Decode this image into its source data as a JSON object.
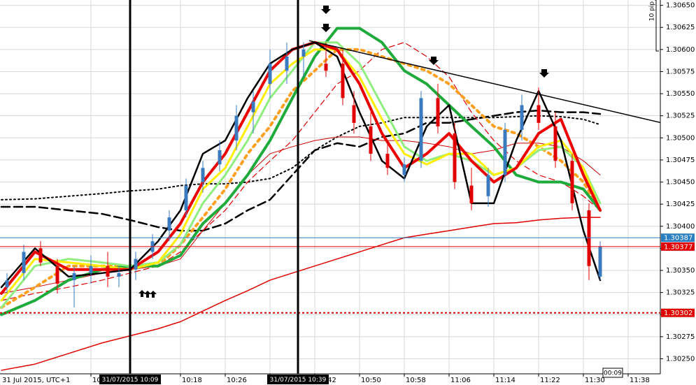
{
  "chart_data": {
    "type": "candlestick",
    "date_label": "31 Jul 2015, UTC+1",
    "scale_label": "10 pip",
    "timer": "00:09",
    "xlim": [
      "09:46",
      "11:44"
    ],
    "xticks": [
      "10:02",
      "10:18",
      "10:26",
      "10:34",
      "10:42",
      "10:50",
      "10:58",
      "11:06",
      "11:14",
      "11:22",
      "11:30",
      "11:38"
    ],
    "ylim": [
      1.30233,
      1.30656
    ],
    "yticks": [
      {
        "value": 1.3025,
        "label": "1.30250"
      },
      {
        "value": 1.30275,
        "label": "1.30275"
      },
      {
        "value": 1.303,
        "label": "1.30300"
      },
      {
        "value": 1.30325,
        "label": "1.30325"
      },
      {
        "value": 1.3035,
        "label": "1.30350"
      },
      {
        "value": 1.30375,
        "label": "1.30375"
      },
      {
        "value": 1.304,
        "label": "1.30400"
      },
      {
        "value": 1.30425,
        "label": "1.30425"
      },
      {
        "value": 1.3045,
        "label": "1.30450"
      },
      {
        "value": 1.30475,
        "label": "1.30475"
      },
      {
        "value": 1.305,
        "label": "1.30500"
      },
      {
        "value": 1.30525,
        "label": "1.30525"
      },
      {
        "value": 1.3055,
        "label": "1.30550"
      },
      {
        "value": 1.30575,
        "label": "1.30575"
      },
      {
        "value": 1.306,
        "label": "1.30600"
      },
      {
        "value": 1.30625,
        "label": "1.30625"
      },
      {
        "value": 1.3065,
        "label": "1.30650"
      }
    ],
    "grid": true,
    "grid_color": "#d8d8d8",
    "up_color": "#3a7bbf",
    "down_color": "#e00000",
    "candles": {
      "x": [
        "09:47",
        "09:50",
        "09:53",
        "09:56",
        "09:59",
        "10:02",
        "10:05",
        "10:07",
        "10:10",
        "10:13",
        "10:16",
        "10:19",
        "10:22",
        "10:25",
        "10:28",
        "10:31",
        "10:34",
        "10:37",
        "10:40",
        "10:44",
        "10:47",
        "10:49",
        "10:52",
        "10:55",
        "10:58",
        "11:01",
        "11:04",
        "11:07",
        "11:10",
        "11:13",
        "11:16",
        "11:19",
        "11:22",
        "11:25",
        "11:28",
        "11:31",
        "11:33"
      ],
      "open": [
        1.30331,
        1.30347,
        1.30375,
        1.30355,
        1.30339,
        1.30347,
        1.30355,
        1.30343,
        1.30351,
        1.30371,
        1.30395,
        1.30418,
        1.3045,
        1.3047,
        1.30497,
        1.30529,
        1.30561,
        1.30576,
        1.30592,
        1.30584,
        1.30584,
        1.30537,
        1.30513,
        1.30482,
        1.30458,
        1.30474,
        1.30545,
        1.30505,
        1.30446,
        1.30434,
        1.30458,
        1.30509,
        1.30537,
        1.30513,
        1.30474,
        1.30418,
        1.30343
      ],
      "high": [
        1.30347,
        1.30379,
        1.30383,
        1.30363,
        1.30355,
        1.30367,
        1.30371,
        1.30355,
        1.30371,
        1.30391,
        1.30418,
        1.30454,
        1.30474,
        1.30497,
        1.30537,
        1.30553,
        1.306,
        1.30608,
        1.30608,
        1.30608,
        1.306,
        1.30553,
        1.30529,
        1.30497,
        1.30478,
        1.30553,
        1.30561,
        1.30517,
        1.30466,
        1.30466,
        1.30517,
        1.30549,
        1.30557,
        1.30529,
        1.30482,
        1.30426,
        1.30383
      ],
      "low": [
        1.30324,
        1.30339,
        1.30355,
        1.30324,
        1.30308,
        1.30335,
        1.30331,
        1.30331,
        1.30339,
        1.30363,
        1.30383,
        1.3041,
        1.30438,
        1.30462,
        1.30486,
        1.30505,
        1.30545,
        1.30561,
        1.30569,
        1.30569,
        1.30537,
        1.30505,
        1.30474,
        1.30458,
        1.3045,
        1.30466,
        1.30505,
        1.30442,
        1.30418,
        1.30422,
        1.3045,
        1.30497,
        1.30509,
        1.30466,
        1.30418,
        1.30339,
        1.30339
      ],
      "close": [
        1.30339,
        1.30371,
        1.30359,
        1.30335,
        1.30347,
        1.30355,
        1.30343,
        1.30347,
        1.30363,
        1.30383,
        1.3041,
        1.30446,
        1.30466,
        1.30486,
        1.30525,
        1.30541,
        1.30584,
        1.30592,
        1.306,
        1.30576,
        1.30545,
        1.30517,
        1.30482,
        1.30466,
        1.3047,
        1.30545,
        1.30513,
        1.3045,
        1.30426,
        1.30458,
        1.30509,
        1.30537,
        1.30517,
        1.30474,
        1.30426,
        1.30355,
        1.30377
      ]
    },
    "line_x": [
      "09:46",
      "09:52",
      "09:58",
      "10:04",
      "10:09",
      "10:14",
      "10:18",
      "10:22",
      "10:26",
      "10:30",
      "10:34",
      "10:38",
      "10:42",
      "10:46",
      "10:50",
      "10:54",
      "10:58",
      "11:02",
      "11:06",
      "11:10",
      "11:14",
      "11:18",
      "11:22",
      "11:26",
      "11:30",
      "11:33"
    ],
    "series": [
      {
        "color": "#e00000",
        "width": 1.5,
        "dash": "none",
        "values": [
          1.30237,
          1.30244,
          1.30256,
          1.30268,
          1.30276,
          1.30284,
          1.30292,
          1.30304,
          1.30316,
          1.30327,
          1.30339,
          1.30347,
          1.30355,
          1.30363,
          1.30371,
          1.30379,
          1.30387,
          1.30391,
          1.30395,
          1.30399,
          1.30403,
          1.30404,
          1.30407,
          1.30409,
          1.3041,
          1.3041
        ]
      },
      {
        "color": "#000000",
        "width": 2,
        "dash": "2,4",
        "values": [
          1.3043,
          1.30431,
          1.30434,
          1.30437,
          1.3044,
          1.30442,
          1.30446,
          1.30448,
          1.30448,
          1.3045,
          1.30454,
          1.30466,
          1.30486,
          1.30501,
          1.30513,
          1.30517,
          1.30523,
          1.30523,
          1.30523,
          1.30523,
          1.30523,
          1.30524,
          1.30525,
          1.30524,
          1.30521,
          1.30515
        ]
      },
      {
        "color": "#000000",
        "width": 2.5,
        "dash": "12,6",
        "values": [
          1.30422,
          1.30422,
          1.30418,
          1.30414,
          1.30407,
          1.30399,
          1.30395,
          1.30395,
          1.30403,
          1.30418,
          1.3043,
          1.30458,
          1.30486,
          1.30494,
          1.3049,
          1.30501,
          1.30505,
          1.30517,
          1.30517,
          1.30521,
          1.30525,
          1.30529,
          1.30531,
          1.30529,
          1.30529,
          1.30527
        ]
      },
      {
        "color": "#cc0000",
        "width": 1,
        "dash": "none",
        "values": [
          1.30324,
          1.30331,
          1.30339,
          1.30347,
          1.30351,
          1.30355,
          1.30363,
          1.30395,
          1.30426,
          1.30458,
          1.30482,
          1.3049,
          1.30497,
          1.30501,
          1.30501,
          1.30497,
          1.30497,
          1.30494,
          1.3049,
          1.30482,
          1.30486,
          1.30494,
          1.30494,
          1.3049,
          1.30474,
          1.30458
        ]
      },
      {
        "color": "#dd0000",
        "width": 1.2,
        "dash": "8,5",
        "values": [
          1.30316,
          1.30324,
          1.30331,
          1.30339,
          1.30347,
          1.30355,
          1.30371,
          1.30395,
          1.30418,
          1.3045,
          1.30474,
          1.30497,
          1.30529,
          1.30561,
          1.30576,
          1.306,
          1.30608,
          1.30592,
          1.30569,
          1.30529,
          1.30497,
          1.30474,
          1.30458,
          1.3045,
          1.30434,
          1.30418
        ]
      },
      {
        "color": "#ffa020",
        "width": 4,
        "dash": "4,6",
        "values": [
          1.30308,
          1.30331,
          1.30355,
          1.30355,
          1.30355,
          1.30355,
          1.30379,
          1.3041,
          1.30442,
          1.30482,
          1.30513,
          1.30553,
          1.30576,
          1.306,
          1.306,
          1.30592,
          1.30584,
          1.30576,
          1.30561,
          1.30537,
          1.30513,
          1.30505,
          1.3049,
          1.30474,
          1.3045,
          1.30418
        ]
      },
      {
        "color": "#1faa3c",
        "width": 4,
        "dash": "none",
        "values": [
          1.303,
          1.30316,
          1.30339,
          1.30351,
          1.30355,
          1.30355,
          1.30367,
          1.30403,
          1.30426,
          1.30458,
          1.30497,
          1.30545,
          1.30592,
          1.30624,
          1.30624,
          1.30608,
          1.30576,
          1.30561,
          1.30537,
          1.30513,
          1.3049,
          1.30458,
          1.3045,
          1.3045,
          1.30442,
          1.30418
        ]
      },
      {
        "color": "#90ee80",
        "width": 3,
        "dash": "none",
        "values": [
          1.30308,
          1.30355,
          1.30363,
          1.30359,
          1.30355,
          1.30359,
          1.30379,
          1.30426,
          1.30458,
          1.30497,
          1.30545,
          1.30576,
          1.30608,
          1.30608,
          1.30584,
          1.30537,
          1.3049,
          1.30474,
          1.30482,
          1.30474,
          1.30458,
          1.30466,
          1.30486,
          1.3049,
          1.30466,
          1.30426
        ]
      },
      {
        "color": "#ffee00",
        "width": 3,
        "dash": "none",
        "values": [
          1.30316,
          1.30363,
          1.30359,
          1.30355,
          1.30351,
          1.30359,
          1.30391,
          1.30442,
          1.30466,
          1.30513,
          1.30561,
          1.30584,
          1.306,
          1.306,
          1.30569,
          1.30521,
          1.30482,
          1.3047,
          1.30482,
          1.30482,
          1.30458,
          1.30466,
          1.3049,
          1.30497,
          1.30466,
          1.30418
        ]
      },
      {
        "color": "#ee0000",
        "width": 4,
        "dash": "none",
        "values": [
          1.30324,
          1.30371,
          1.30351,
          1.30351,
          1.30351,
          1.30371,
          1.30403,
          1.3045,
          1.30482,
          1.30529,
          1.30576,
          1.306,
          1.30608,
          1.306,
          1.30561,
          1.30505,
          1.30466,
          1.30482,
          1.30505,
          1.30474,
          1.3045,
          1.30466,
          1.30505,
          1.30521,
          1.30458,
          1.30418
        ]
      },
      {
        "color": "#000000",
        "width": 2.5,
        "dash": "none",
        "values": [
          1.30331,
          1.30375,
          1.30343,
          1.30347,
          1.30351,
          1.30383,
          1.30418,
          1.30482,
          1.30497,
          1.30545,
          1.30584,
          1.306,
          1.30608,
          1.30592,
          1.30529,
          1.30474,
          1.30454,
          1.30513,
          1.30537,
          1.30426,
          1.30426,
          1.30497,
          1.30553,
          1.30497,
          1.30395,
          1.30339
        ]
      }
    ],
    "trendline": {
      "x": [
        "10:41",
        "11:44"
      ],
      "values": [
        1.3061,
        1.30517
      ],
      "color": "#000000"
    },
    "hlines": [
      {
        "value": 1.30387,
        "color": "#2a7fc0",
        "dash": "none"
      },
      {
        "value": 1.30377,
        "color": "#e00000",
        "dash": "none"
      },
      {
        "value": 1.30302,
        "color": "#e00000",
        "dash": "3,3"
      }
    ],
    "vlines": [
      {
        "x": "10:09",
        "label": "31/07/2015 10:09"
      },
      {
        "x": "10:39",
        "label": "31/07/2015 10:39"
      }
    ]
  }
}
